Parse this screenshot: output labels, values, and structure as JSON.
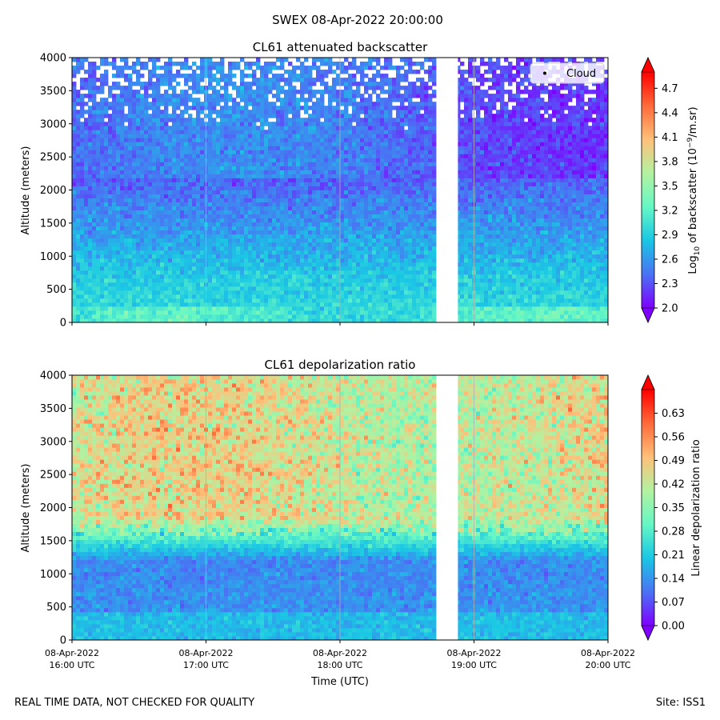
{
  "suptitle": "SWEX 08-Apr-2022 20:00:00",
  "footer_left": "REAL TIME DATA, NOT CHECKED FOR QUALITY",
  "footer_right": "Site: ISS1",
  "xlabel": "Time (UTC)",
  "x_ticks": [
    {
      "hour": 16,
      "line1": "08-Apr-2022",
      "line2": "16:00 UTC"
    },
    {
      "hour": 17,
      "line1": "08-Apr-2022",
      "line2": "17:00 UTC"
    },
    {
      "hour": 18,
      "line1": "08-Apr-2022",
      "line2": "18:00 UTC"
    },
    {
      "hour": 19,
      "line1": "08-Apr-2022",
      "line2": "19:00 UTC"
    },
    {
      "hour": 20,
      "line1": "08-Apr-2022",
      "line2": "20:00 UTC"
    }
  ],
  "colormap": [
    "#7f00ff",
    "#4a72f4",
    "#1ac7e4",
    "#65f7c4",
    "#b2f2a0",
    "#ffc07a",
    "#ff6a3a",
    "#ff0000"
  ],
  "chart_data": [
    {
      "type": "heatmap",
      "title": "CL61 attenuated backscatter",
      "ylabel": "Altitude (meters)",
      "xlim_hours": [
        16,
        20
      ],
      "ylim": [
        0,
        4000
      ],
      "y_ticks": [
        0,
        500,
        1000,
        1500,
        2000,
        2500,
        3000,
        3500,
        4000
      ],
      "data_gap_hours": [
        18.73,
        18.88
      ],
      "legend": {
        "label": "Cloud",
        "placement": "top-right"
      },
      "colorbar": {
        "label": "Log10 of backscatter (10^-9/m.sr)",
        "label_parts": [
          "Log",
          "10",
          " of backscatter (10",
          "−9",
          "/m.sr)"
        ],
        "range": [
          2.0,
          4.9
        ],
        "ticks": [
          "2.0",
          "2.3",
          "2.6",
          "2.9",
          "3.2",
          "3.5",
          "3.8",
          "4.1",
          "4.4",
          "4.7"
        ],
        "extend": "both"
      }
    },
    {
      "type": "heatmap",
      "title": "CL61 depolarization ratio",
      "ylabel": "Altitude (meters)",
      "xlim_hours": [
        16,
        20
      ],
      "ylim": [
        0,
        4000
      ],
      "y_ticks": [
        0,
        500,
        1000,
        1500,
        2000,
        2500,
        3000,
        3500,
        4000
      ],
      "data_gap_hours": [
        18.73,
        18.88
      ],
      "colorbar": {
        "label": "Linear depolarization ratio",
        "range": [
          0.0,
          0.7
        ],
        "ticks": [
          "0.00",
          "0.07",
          "0.14",
          "0.21",
          "0.28",
          "0.35",
          "0.42",
          "0.49",
          "0.56",
          "0.63"
        ],
        "extend": "both"
      }
    }
  ]
}
